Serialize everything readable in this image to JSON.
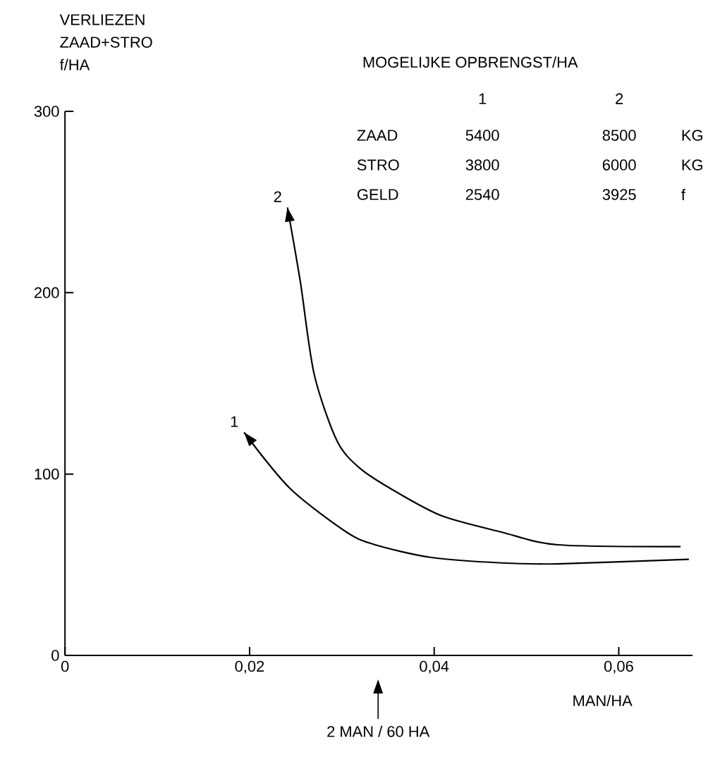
{
  "chart_data": {
    "type": "line",
    "ylabel": "VERLIEZEN ZAAD+STRO f/HA",
    "xlabel": "MAN/HA",
    "xlim": [
      0,
      0.068
    ],
    "ylim": [
      0,
      300
    ],
    "xticks": [
      0,
      {
        "value": 0.02,
        "label": "0,02"
      },
      {
        "value": 0.04,
        "label": "0,04"
      },
      {
        "value": 0.06,
        "label": "0,06"
      }
    ],
    "yticks": [
      0,
      100,
      200,
      300
    ],
    "series": [
      {
        "name": "1",
        "color": "#000000",
        "x": [
          0.0194,
          0.0244,
          0.0305,
          0.0336,
          0.0397,
          0.0473,
          0.0534,
          0.0676
        ],
        "values": [
          123,
          92,
          68,
          61,
          54,
          51,
          50.5,
          53
        ]
      },
      {
        "name": "2",
        "color": "#000000",
        "x": [
          0.0241,
          0.0255,
          0.027,
          0.0295,
          0.032,
          0.0356,
          0.0408,
          0.0473,
          0.0534,
          0.0667
        ],
        "values": [
          247,
          206,
          155,
          118,
          103,
          91,
          77,
          68,
          61,
          60
        ]
      }
    ],
    "annotations": [
      "MOGELIJKE OPBRENGST/HA",
      "1",
      "2",
      "ZAAD",
      "5400",
      "8500",
      "KG",
      "STRO",
      "3800",
      "6000",
      "KG",
      "GELD",
      "2540",
      "3925",
      "f",
      "2 MAN / 60 HA"
    ]
  }
}
